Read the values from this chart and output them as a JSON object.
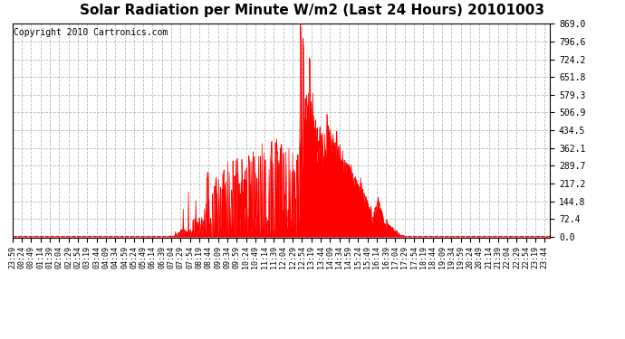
{
  "title": "Solar Radiation per Minute W/m2 (Last 24 Hours) 20101003",
  "copyright": "Copyright 2010 Cartronics.com",
  "ymin": 0.0,
  "ymax": 869.0,
  "yticks": [
    0.0,
    72.4,
    144.8,
    217.2,
    289.7,
    362.1,
    434.5,
    506.9,
    579.3,
    651.8,
    724.2,
    796.6,
    869.0
  ],
  "bar_color": "#FF0000",
  "dashed_line_color": "#FF0000",
  "grid_color": "#AAAAAA",
  "bg_color": "#FFFFFF",
  "title_fontsize": 11,
  "copyright_fontsize": 7,
  "tick_fontsize": 6,
  "ytick_fontsize": 7,
  "tick_interval_minutes": 25
}
